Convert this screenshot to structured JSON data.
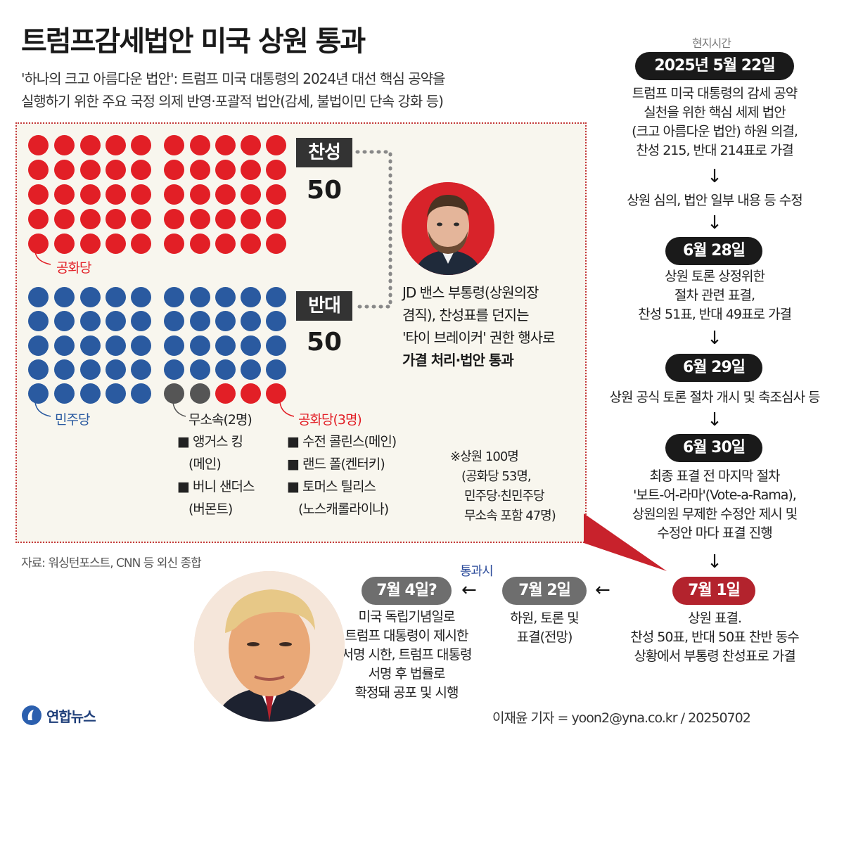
{
  "title": "트럼프감세법안 미국 상원 통과",
  "subtitle": {
    "line1": "'하나의 크고 아름다운 법안': 트럼프 미국 대통령의 2024년 대선 핵심 공약을",
    "line2": "실행하기 위한 주요 국정 의제 반영·포괄적 법안(감세, 불법이민 단속 강화 등)"
  },
  "colors": {
    "republican": "#e21f26",
    "democrat": "#2a5aa0",
    "independent": "#555555",
    "panel_border": "#c43a3a"
  },
  "vote": {
    "yes_label": "찬성",
    "yes_count": "50",
    "no_label": "반대",
    "no_count": "50"
  },
  "seats": {
    "yes_republican": 50,
    "no_democrat": 45,
    "no_independent": 2,
    "no_republican": 3
  },
  "labels": {
    "republican": "공화당",
    "democrat": "민주당",
    "independent": "무소속(2명)",
    "republican3": "공화당(3명)"
  },
  "independents": [
    "■ 앵거스 킹",
    "(메인)",
    "■ 버니 샌더스",
    "(버몬트)"
  ],
  "republicans_no": [
    "■ 수전 콜린스(메인)",
    "■ 랜드 폴(켄터키)",
    "■ 토머스 틸리스",
    "(노스캐롤라이나)"
  ],
  "vance": {
    "line1": "JD 밴스 부통령(상원의장",
    "line2": "겸직), 찬성표를 던지는",
    "line3": "'타이 브레이커' 권한 행사로",
    "line4": "가결 처리·법안 통과"
  },
  "note": {
    "line1": "※상원 100명",
    "line2": "(공화당 53명,",
    "line3": "민주당·친민주당",
    "line4": "무소속 포함 47명)"
  },
  "source": "자료: 워싱턴포스트, CNN 등 외신 종합",
  "timeline": {
    "header": "현지시간",
    "d1": "2025년 5월 22일",
    "d1_text": [
      "트럼프 미국 대통령의 감세 공약",
      "실천을 위한 핵심 세제 법안",
      "(크고 아름다운 법안) 하원 의결,",
      "찬성 215, 반대 214표로 가결"
    ],
    "mid_text": "상원 심의, 법안 일부 내용 등 수정",
    "d2": "6월 28일",
    "d2_text": [
      "상원 토론 상정위한",
      "절차 관련 표결,",
      "찬성 51표, 반대 49표로 가결"
    ],
    "d3": "6월 29일",
    "d3_text": "상원 공식 토론 절차 개시 및 축조심사 등",
    "d4": "6월 30일",
    "d4_text": [
      "최종 표결 전 마지막 절차",
      "'보트-어-라마'(Vote-a-Rama),",
      "상원의원 무제한 수정안 제시 및",
      "수정안 마다 표결 진행"
    ],
    "d5": "7월 1일",
    "d5_text": [
      "상원 표결.",
      "찬성 50표, 반대 50표 찬반 동수",
      "상황에서 부통령 찬성표로 가결"
    ],
    "d6": "7월 2일",
    "d6_text": [
      "하원, 토론 및",
      "표결(전망)"
    ],
    "pass_label": "통과시",
    "d7": "7월 4일?",
    "d7_text": [
      "미국 독립기념일로",
      "트럼프 대통령이 제시한",
      "서명 시한, 트럼프 대통령",
      "서명 후 법률로",
      "확정돼 공포 및 시행"
    ]
  },
  "arrow_down": "↓",
  "arrow_left": "←",
  "logo_text": "연합뉴스",
  "credit": "이재윤 기자 = yoon2@yna.co.kr / 20250702"
}
